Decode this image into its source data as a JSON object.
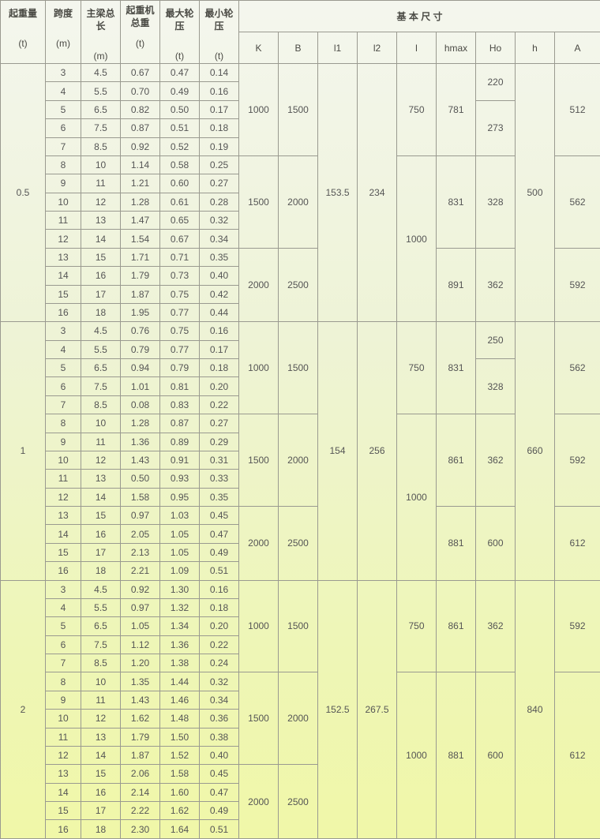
{
  "header": {
    "left": [
      {
        "label": "起重量",
        "unit": "(t)"
      },
      {
        "label": "跨度",
        "unit": "(m)"
      },
      {
        "label": "主梁总长",
        "unit": "(m)"
      },
      {
        "label": "起重机总重",
        "unit": "(t)"
      },
      {
        "label": "最大轮压",
        "unit": "(t)"
      },
      {
        "label": "最小轮压",
        "unit": "(t)"
      }
    ],
    "group_title": "基 本 尺 寸",
    "dims": [
      "K",
      "B",
      "l1",
      "l2",
      "l",
      "hmax",
      "Ho",
      "h",
      "A"
    ]
  },
  "groups": [
    {
      "capacity": "0.5",
      "rows": [
        [
          "3",
          "4.5",
          "0.67",
          "0.47",
          "0.14"
        ],
        [
          "4",
          "5.5",
          "0.70",
          "0.49",
          "0.16"
        ],
        [
          "5",
          "6.5",
          "0.82",
          "0.50",
          "0.17"
        ],
        [
          "6",
          "7.5",
          "0.87",
          "0.51",
          "0.18"
        ],
        [
          "7",
          "8.5",
          "0.92",
          "0.52",
          "0.19"
        ],
        [
          "8",
          "10",
          "1.14",
          "0.58",
          "0.25"
        ],
        [
          "9",
          "11",
          "1.21",
          "0.60",
          "0.27"
        ],
        [
          "10",
          "12",
          "1.28",
          "0.61",
          "0.28"
        ],
        [
          "11",
          "13",
          "1.47",
          "0.65",
          "0.32"
        ],
        [
          "12",
          "14",
          "1.54",
          "0.67",
          "0.34"
        ],
        [
          "13",
          "15",
          "1.71",
          "0.71",
          "0.35"
        ],
        [
          "14",
          "16",
          "1.79",
          "0.73",
          "0.40"
        ],
        [
          "15",
          "17",
          "1.87",
          "0.75",
          "0.42"
        ],
        [
          "16",
          "18",
          "1.95",
          "0.77",
          "0.44"
        ]
      ],
      "dims": {
        "K": [
          [
            "1000",
            5
          ],
          [
            "1500",
            5
          ],
          [
            "2000",
            4
          ]
        ],
        "B": [
          [
            "1500",
            5
          ],
          [
            "2000",
            5
          ],
          [
            "2500",
            4
          ]
        ],
        "l1": [
          [
            "153.5",
            14
          ]
        ],
        "l2": [
          [
            "234",
            14
          ]
        ],
        "l": [
          [
            "750",
            5
          ],
          [
            "1000",
            9
          ]
        ],
        "hmax": [
          [
            "781",
            5
          ],
          [
            "831",
            5
          ],
          [
            "891",
            4
          ]
        ],
        "Ho": [
          [
            "220",
            2
          ],
          [
            "273",
            3
          ],
          [
            "328",
            5
          ],
          [
            "362",
            4
          ]
        ],
        "h": [
          [
            "500",
            14
          ]
        ],
        "A": [
          [
            "512",
            5
          ],
          [
            "562",
            5
          ],
          [
            "592",
            4
          ]
        ]
      }
    },
    {
      "capacity": "1",
      "rows": [
        [
          "3",
          "4.5",
          "0.76",
          "0.75",
          "0.16"
        ],
        [
          "4",
          "5.5",
          "0.79",
          "0.77",
          "0.17"
        ],
        [
          "5",
          "6.5",
          "0.94",
          "0.79",
          "0.18"
        ],
        [
          "6",
          "7.5",
          "1.01",
          "0.81",
          "0.20"
        ],
        [
          "7",
          "8.5",
          "0.08",
          "0.83",
          "0.22"
        ],
        [
          "8",
          "10",
          "1.28",
          "0.87",
          "0.27"
        ],
        [
          "9",
          "11",
          "1.36",
          "0.89",
          "0.29"
        ],
        [
          "10",
          "12",
          "1.43",
          "0.91",
          "0.31"
        ],
        [
          "11",
          "13",
          "0.50",
          "0.93",
          "0.33"
        ],
        [
          "12",
          "14",
          "1.58",
          "0.95",
          "0.35"
        ],
        [
          "13",
          "15",
          "0.97",
          "1.03",
          "0.45"
        ],
        [
          "14",
          "16",
          "2.05",
          "1.05",
          "0.47"
        ],
        [
          "15",
          "17",
          "2.13",
          "1.05",
          "0.49"
        ],
        [
          "16",
          "18",
          "2.21",
          "1.09",
          "0.51"
        ]
      ],
      "dims": {
        "K": [
          [
            "1000",
            5
          ],
          [
            "1500",
            5
          ],
          [
            "2000",
            4
          ]
        ],
        "B": [
          [
            "1500",
            5
          ],
          [
            "2000",
            5
          ],
          [
            "2500",
            4
          ]
        ],
        "l1": [
          [
            "154",
            14
          ]
        ],
        "l2": [
          [
            "256",
            14
          ]
        ],
        "l": [
          [
            "750",
            5
          ],
          [
            "1000",
            9
          ]
        ],
        "hmax": [
          [
            "831",
            5
          ],
          [
            "861",
            5
          ],
          [
            "881",
            4
          ]
        ],
        "Ho": [
          [
            "250",
            2
          ],
          [
            "328",
            3
          ],
          [
            "362",
            5
          ],
          [
            "600",
            4
          ]
        ],
        "h": [
          [
            "660",
            14
          ]
        ],
        "A": [
          [
            "562",
            5
          ],
          [
            "592",
            5
          ],
          [
            "612",
            4
          ]
        ]
      }
    },
    {
      "capacity": "2",
      "rows": [
        [
          "3",
          "4.5",
          "0.92",
          "1.30",
          "0.16"
        ],
        [
          "4",
          "5.5",
          "0.97",
          "1.32",
          "0.18"
        ],
        [
          "5",
          "6.5",
          "1.05",
          "1.34",
          "0.20"
        ],
        [
          "6",
          "7.5",
          "1.12",
          "1.36",
          "0.22"
        ],
        [
          "7",
          "8.5",
          "1.20",
          "1.38",
          "0.24"
        ],
        [
          "8",
          "10",
          "1.35",
          "1.44",
          "0.32"
        ],
        [
          "9",
          "11",
          "1.43",
          "1.46",
          "0.34"
        ],
        [
          "10",
          "12",
          "1.62",
          "1.48",
          "0.36"
        ],
        [
          "11",
          "13",
          "1.79",
          "1.50",
          "0.38"
        ],
        [
          "12",
          "14",
          "1.87",
          "1.52",
          "0.40"
        ],
        [
          "13",
          "15",
          "2.06",
          "1.58",
          "0.45"
        ],
        [
          "14",
          "16",
          "2.14",
          "1.60",
          "0.47"
        ],
        [
          "15",
          "17",
          "2.22",
          "1.62",
          "0.49"
        ],
        [
          "16",
          "18",
          "2.30",
          "1.64",
          "0.51"
        ]
      ],
      "dims": {
        "K": [
          [
            "1000",
            5
          ],
          [
            "1500",
            5
          ],
          [
            "2000",
            4
          ]
        ],
        "B": [
          [
            "1500",
            5
          ],
          [
            "2000",
            5
          ],
          [
            "2500",
            4
          ]
        ],
        "l1": [
          [
            "152.5",
            14
          ]
        ],
        "l2": [
          [
            "267.5",
            14
          ]
        ],
        "l": [
          [
            "750",
            5
          ],
          [
            "1000",
            9
          ]
        ],
        "hmax": [
          [
            "861",
            5
          ],
          [
            "881",
            9
          ]
        ],
        "Ho": [
          [
            "362",
            5
          ],
          [
            "600",
            9
          ]
        ],
        "h": [
          [
            "840",
            14
          ]
        ],
        "A": [
          [
            "592",
            5
          ],
          [
            "612",
            9
          ]
        ]
      }
    }
  ]
}
